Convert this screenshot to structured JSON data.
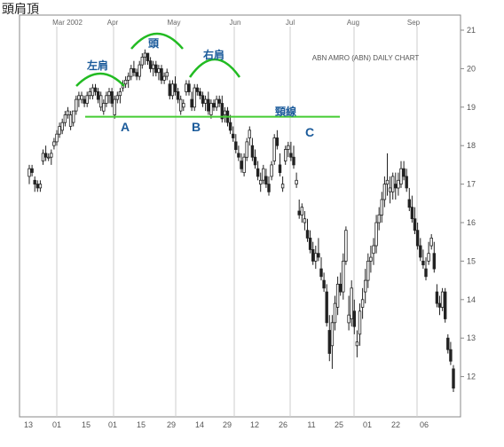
{
  "page": {
    "title": "頭肩頂"
  },
  "chart_data": {
    "type": "candlestick",
    "title": "ABN AMRO (ABN) DAILY CHART",
    "ylim": [
      11.2,
      21.2
    ],
    "y_ticks": [
      12,
      13,
      14,
      15,
      16,
      17,
      18,
      19,
      20,
      21
    ],
    "month_labels": [
      "Mar 2002",
      "Apr",
      "May",
      "Jun",
      "Jul",
      "Aug",
      "Sep"
    ],
    "day_labels": [
      "13",
      "01",
      "15",
      "01",
      "15",
      "29",
      "14",
      "29",
      "12",
      "26",
      "11",
      "25",
      "01",
      "22",
      "06"
    ],
    "neckline": {
      "label": "頸線",
      "value": 18.75
    },
    "pattern_labels": {
      "left_shoulder": "左肩",
      "head": "頭",
      "right_shoulder": "右肩"
    },
    "points": [
      "A",
      "B",
      "C"
    ],
    "colors": {
      "neckline": "#44cc33",
      "arc": "#22bb22",
      "label": "#1a5a9a",
      "grid": "#cccccc",
      "frame": "#888888"
    },
    "candles": [
      [
        17.2,
        17.5,
        17.0,
        17.4
      ],
      [
        17.4,
        17.5,
        17.2,
        17.3
      ],
      [
        17.1,
        17.2,
        16.8,
        17.0
      ],
      [
        17.0,
        17.1,
        16.8,
        16.9
      ],
      [
        16.9,
        17.1,
        16.8,
        17.0
      ],
      [
        17.6,
        17.9,
        17.5,
        17.8
      ],
      [
        17.8,
        18.0,
        17.6,
        17.7
      ],
      [
        17.7,
        17.8,
        17.6,
        17.7
      ],
      [
        17.7,
        17.9,
        17.5,
        17.8
      ],
      [
        18.0,
        18.2,
        17.9,
        18.1
      ],
      [
        18.1,
        18.4,
        18.0,
        18.3
      ],
      [
        18.3,
        18.6,
        18.2,
        18.5
      ],
      [
        18.4,
        18.7,
        18.3,
        18.6
      ],
      [
        18.6,
        18.9,
        18.5,
        18.8
      ],
      [
        18.8,
        19.0,
        18.7,
        18.9
      ],
      [
        18.5,
        18.9,
        18.4,
        18.8
      ],
      [
        18.6,
        18.9,
        18.5,
        18.9
      ],
      [
        18.9,
        19.3,
        18.8,
        19.2
      ],
      [
        19.2,
        19.4,
        19.0,
        19.3
      ],
      [
        19.2,
        19.4,
        19.1,
        19.3
      ],
      [
        19.2,
        19.3,
        19.0,
        19.1
      ],
      [
        19.1,
        19.4,
        19.0,
        19.3
      ],
      [
        19.3,
        19.5,
        19.2,
        19.4
      ],
      [
        19.3,
        19.6,
        19.2,
        19.5
      ],
      [
        19.5,
        19.6,
        19.3,
        19.4
      ],
      [
        19.4,
        19.5,
        19.1,
        19.2
      ],
      [
        19.0,
        19.4,
        18.9,
        19.3
      ],
      [
        18.9,
        19.2,
        18.8,
        19.1
      ],
      [
        19.1,
        19.4,
        19.0,
        19.3
      ],
      [
        19.3,
        19.5,
        19.1,
        19.4
      ],
      [
        19.4,
        19.5,
        19.0,
        19.1
      ],
      [
        18.8,
        19.3,
        18.7,
        19.2
      ],
      [
        19.2,
        19.4,
        19.1,
        19.3
      ],
      [
        19.3,
        19.5,
        19.1,
        19.4
      ],
      [
        19.5,
        19.7,
        19.4,
        19.6
      ],
      [
        19.6,
        19.8,
        19.5,
        19.7
      ],
      [
        19.7,
        19.9,
        19.5,
        19.8
      ],
      [
        19.8,
        20.1,
        19.7,
        20.0
      ],
      [
        20.0,
        20.2,
        19.8,
        19.9
      ],
      [
        19.9,
        20.0,
        19.7,
        19.8
      ],
      [
        19.8,
        20.2,
        19.7,
        20.1
      ],
      [
        20.1,
        20.4,
        20.0,
        20.3
      ],
      [
        20.3,
        20.5,
        20.1,
        20.4
      ],
      [
        20.4,
        20.3,
        20.1,
        20.2
      ],
      [
        20.2,
        20.3,
        19.9,
        20.0
      ],
      [
        20.0,
        20.2,
        19.8,
        20.1
      ],
      [
        20.1,
        20.2,
        19.8,
        19.9
      ],
      [
        19.9,
        20.1,
        19.7,
        20.0
      ],
      [
        20.0,
        20.1,
        19.6,
        19.7
      ],
      [
        19.7,
        19.9,
        19.6,
        19.8
      ],
      [
        19.8,
        20.0,
        19.7,
        19.9
      ],
      [
        19.6,
        19.7,
        19.2,
        19.3
      ],
      [
        19.3,
        19.7,
        19.2,
        19.6
      ],
      [
        19.6,
        19.8,
        19.3,
        19.4
      ],
      [
        19.4,
        19.5,
        19.1,
        19.2
      ],
      [
        18.9,
        19.3,
        18.8,
        19.2
      ],
      [
        19.0,
        19.2,
        18.9,
        19.1
      ],
      [
        19.4,
        19.7,
        19.3,
        19.6
      ],
      [
        19.6,
        19.7,
        19.3,
        19.4
      ],
      [
        19.2,
        19.4,
        18.9,
        19.0
      ],
      [
        19.0,
        19.6,
        18.9,
        19.5
      ],
      [
        19.5,
        19.6,
        19.3,
        19.4
      ],
      [
        19.4,
        19.5,
        19.2,
        19.3
      ],
      [
        19.3,
        19.4,
        19.0,
        19.1
      ],
      [
        19.1,
        19.3,
        18.9,
        19.2
      ],
      [
        19.2,
        19.4,
        18.8,
        18.9
      ],
      [
        18.8,
        19.2,
        18.7,
        19.1
      ],
      [
        19.1,
        19.2,
        18.9,
        19.0
      ],
      [
        19.0,
        19.3,
        18.9,
        19.2
      ],
      [
        19.2,
        19.3,
        19.0,
        19.1
      ],
      [
        19.1,
        19.3,
        18.6,
        18.7
      ],
      [
        18.8,
        19.0,
        18.6,
        18.9
      ],
      [
        18.9,
        19.0,
        18.5,
        18.6
      ],
      [
        18.6,
        18.8,
        18.3,
        18.4
      ],
      [
        18.3,
        18.5,
        18.1,
        18.2
      ],
      [
        18.1,
        18.3,
        17.8,
        17.9
      ],
      [
        17.8,
        18.0,
        17.6,
        17.7
      ],
      [
        17.6,
        17.8,
        17.3,
        17.4
      ],
      [
        17.3,
        17.8,
        17.2,
        17.7
      ],
      [
        17.7,
        18.2,
        17.6,
        18.1
      ],
      [
        18.2,
        18.5,
        18.0,
        18.4
      ],
      [
        18.0,
        18.2,
        17.6,
        17.7
      ],
      [
        17.7,
        17.9,
        17.4,
        17.5
      ],
      [
        17.4,
        17.6,
        17.1,
        17.2
      ],
      [
        17.0,
        17.3,
        16.8,
        17.1
      ],
      [
        17.1,
        17.5,
        17.0,
        17.4
      ],
      [
        17.2,
        17.4,
        16.9,
        17.0
      ],
      [
        17.0,
        17.2,
        16.7,
        16.8
      ],
      [
        17.2,
        17.6,
        17.1,
        17.5
      ],
      [
        17.6,
        18.3,
        17.5,
        18.2
      ],
      [
        18.2,
        18.4,
        17.9,
        18.0
      ],
      [
        17.5,
        17.8,
        17.2,
        17.3
      ],
      [
        16.9,
        17.2,
        16.8,
        17.0
      ],
      [
        17.6,
        18.0,
        17.5,
        17.9
      ],
      [
        17.9,
        18.1,
        17.7,
        18.0
      ],
      [
        17.8,
        18.1,
        17.6,
        17.7
      ],
      [
        17.7,
        18.0,
        17.4,
        17.5
      ],
      [
        17.0,
        17.3,
        16.9,
        17.1
      ],
      [
        16.3,
        16.6,
        16.1,
        16.2
      ],
      [
        16.2,
        16.5,
        16.0,
        16.4
      ],
      [
        16.0,
        16.3,
        15.8,
        16.1
      ],
      [
        15.8,
        16.1,
        15.5,
        15.6
      ],
      [
        15.6,
        15.8,
        15.2,
        15.3
      ],
      [
        15.3,
        15.5,
        14.9,
        15.0
      ],
      [
        15.0,
        15.4,
        14.8,
        15.2
      ],
      [
        15.2,
        15.6,
        15.0,
        15.1
      ],
      [
        14.8,
        15.1,
        14.5,
        14.6
      ],
      [
        14.5,
        14.7,
        14.2,
        14.3
      ],
      [
        14.2,
        14.4,
        13.3,
        13.4
      ],
      [
        13.2,
        13.6,
        12.4,
        12.6
      ],
      [
        12.8,
        13.6,
        12.2,
        13.4
      ],
      [
        13.4,
        14.1,
        13.2,
        13.9
      ],
      [
        13.8,
        14.6,
        13.6,
        14.4
      ],
      [
        14.4,
        14.7,
        14.1,
        14.2
      ],
      [
        14.2,
        15.2,
        14.0,
        15.0
      ],
      [
        15.0,
        15.9,
        14.9,
        15.8
      ],
      [
        13.4,
        14.1,
        13.2,
        13.6
      ],
      [
        13.5,
        14.5,
        13.3,
        14.3
      ],
      [
        13.7,
        14.0,
        13.1,
        13.3
      ],
      [
        12.8,
        13.2,
        12.5,
        12.9
      ],
      [
        13.1,
        13.9,
        12.8,
        13.7
      ],
      [
        13.8,
        14.3,
        13.5,
        14.0
      ],
      [
        14.2,
        14.8,
        13.9,
        14.5
      ],
      [
        14.5,
        15.2,
        14.3,
        15.0
      ],
      [
        15.0,
        15.4,
        14.7,
        15.1
      ],
      [
        15.2,
        15.6,
        14.9,
        15.4
      ],
      [
        15.4,
        16.2,
        15.2,
        16.0
      ],
      [
        16.0,
        16.4,
        15.8,
        16.2
      ],
      [
        16.2,
        16.8,
        16.0,
        16.6
      ],
      [
        16.6,
        17.2,
        16.4,
        17.0
      ],
      [
        17.0,
        17.8,
        16.7,
        17.1
      ],
      [
        16.8,
        17.2,
        16.5,
        16.9
      ],
      [
        16.8,
        17.3,
        16.6,
        17.2
      ],
      [
        17.0,
        17.3,
        16.6,
        16.9
      ],
      [
        16.9,
        17.3,
        16.7,
        17.1
      ],
      [
        17.0,
        17.6,
        16.9,
        17.4
      ],
      [
        17.4,
        17.6,
        17.1,
        17.2
      ],
      [
        17.2,
        17.4,
        16.8,
        16.9
      ],
      [
        16.6,
        16.9,
        16.3,
        16.4
      ],
      [
        16.4,
        16.7,
        16.0,
        16.1
      ],
      [
        16.1,
        16.4,
        15.7,
        15.8
      ],
      [
        15.8,
        16.0,
        15.3,
        15.4
      ],
      [
        15.4,
        15.6,
        15.0,
        15.1
      ],
      [
        15.0,
        15.3,
        14.8,
        14.9
      ],
      [
        14.8,
        15.1,
        14.5,
        14.6
      ],
      [
        15.0,
        15.5,
        14.9,
        15.2
      ],
      [
        15.4,
        15.7,
        15.3,
        15.6
      ],
      [
        15.2,
        15.5,
        14.7,
        14.8
      ],
      [
        14.2,
        14.4,
        13.8,
        13.9
      ],
      [
        13.9,
        14.1,
        13.6,
        13.8
      ],
      [
        13.8,
        14.3,
        13.7,
        14.2
      ],
      [
        14.2,
        14.3,
        13.4,
        13.5
      ],
      [
        13.0,
        13.1,
        12.6,
        12.7
      ],
      [
        12.7,
        12.9,
        12.3,
        12.4
      ],
      [
        12.2,
        12.3,
        11.6,
        11.7
      ]
    ]
  }
}
